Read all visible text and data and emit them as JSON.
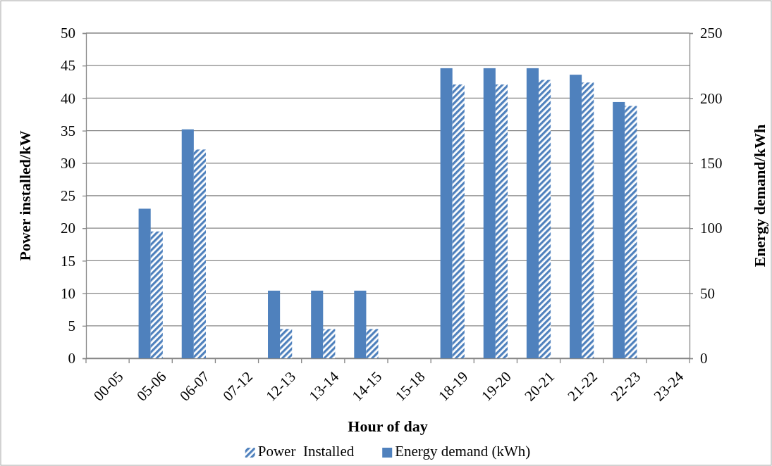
{
  "chart_data": {
    "type": "bar",
    "categories": [
      "00-05",
      "05-06",
      "06-07",
      "07-12",
      "12-13",
      "13-14",
      "14-15",
      "15-18",
      "18-19",
      "19-20",
      "20-21",
      "21-22",
      "22-23",
      "23-24"
    ],
    "series": [
      {
        "name": "Energy demand (kWh)",
        "color": "#4f81bd",
        "axis": "y2",
        "values": [
          0,
          115,
          176,
          0,
          52,
          52,
          52,
          0,
          223,
          223,
          223,
          218,
          197,
          0
        ]
      },
      {
        "name": "Power  Installed",
        "color": "#4f81bd",
        "axis": "y",
        "values": [
          0,
          19.5,
          32.1,
          0,
          4.5,
          4.5,
          4.5,
          0,
          42.1,
          42.1,
          42.8,
          42.4,
          38.8,
          0
        ]
      }
    ],
    "xlabel": "Hour of day",
    "ylabel": "Power installed/kW",
    "y2label": "Energy demand/kWh",
    "ylim": [
      0,
      50
    ],
    "yticks": [
      0,
      5,
      10,
      15,
      20,
      25,
      30,
      35,
      40,
      45,
      50
    ],
    "y2lim": [
      0,
      250
    ],
    "y2ticks": [
      0,
      50,
      100,
      150,
      200,
      250
    ],
    "grid": "y",
    "legend": "bottom"
  }
}
